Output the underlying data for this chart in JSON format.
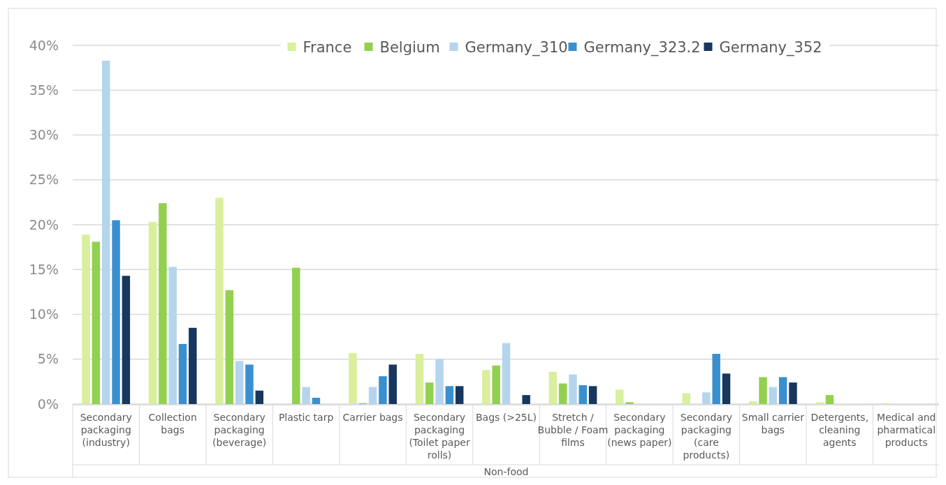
{
  "chart_data": {
    "type": "bar",
    "xlabel": "Non-food",
    "categories": [
      "Secondary packaging (industry)",
      "Collection bags",
      "Secondary packaging (beverage)",
      "Plastic tarp",
      "Carrier bags",
      "Secondary packaging (Toilet paper rolls)",
      "Bags (>25L)",
      "Stretch / Bubble / Foam films",
      "Secondary packaging (news paper)",
      "Secondary packaging (care products)",
      "Small carrier bags",
      "Detergents, cleaning agents",
      "Medical and pharmatical products"
    ],
    "series": [
      {
        "name": "France",
        "color": "#d9ef9c",
        "values": [
          18.9,
          20.3,
          23.0,
          0,
          5.7,
          5.6,
          3.8,
          3.6,
          1.6,
          1.2,
          0.3,
          0.2,
          0.1
        ]
      },
      {
        "name": "Belgium",
        "color": "#92d050",
        "values": [
          18.1,
          22.4,
          12.7,
          15.2,
          0.1,
          2.4,
          4.3,
          2.3,
          0.2,
          0,
          3.0,
          1.0,
          0
        ]
      },
      {
        "name": "Germany_310",
        "color": "#b4d5ed",
        "values": [
          38.3,
          15.3,
          4.8,
          1.9,
          1.9,
          5.0,
          6.8,
          3.3,
          0,
          1.3,
          1.9,
          0,
          0
        ]
      },
      {
        "name": "Germany_323.2",
        "color": "#3a8fcf",
        "values": [
          20.5,
          6.7,
          4.4,
          0.7,
          3.1,
          2.0,
          0,
          2.1,
          0,
          5.6,
          3.0,
          0,
          0
        ]
      },
      {
        "name": "Germany_352",
        "color": "#17375e",
        "values": [
          14.3,
          8.5,
          1.5,
          0,
          4.4,
          2.0,
          1.0,
          2.0,
          0,
          3.4,
          2.4,
          0,
          0
        ]
      }
    ],
    "ylim": [
      0,
      40
    ],
    "yticks": [
      {
        "value": 0,
        "label": "0%"
      },
      {
        "value": 5,
        "label": "5%"
      },
      {
        "value": 10,
        "label": "10%"
      },
      {
        "value": 15,
        "label": "15%"
      },
      {
        "value": 20,
        "label": "20%"
      },
      {
        "value": 25,
        "label": "25%"
      },
      {
        "value": 30,
        "label": "30%"
      },
      {
        "value": 35,
        "label": "35%"
      },
      {
        "value": 40,
        "label": "40%"
      }
    ],
    "grid": "y",
    "legend": "top"
  }
}
